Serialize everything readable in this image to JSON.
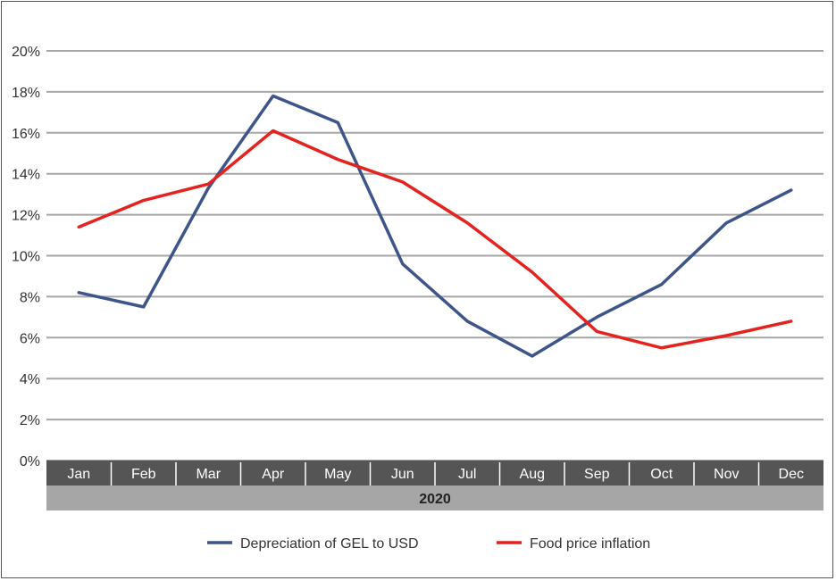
{
  "chart_data": {
    "type": "line",
    "categories": [
      "Jan",
      "Feb",
      "Mar",
      "Apr",
      "May",
      "Jun",
      "Jul",
      "Aug",
      "Sep",
      "Oct",
      "Nov",
      "Dec"
    ],
    "group_label": "2020",
    "yticks": [
      "0%",
      "2%",
      "4%",
      "6%",
      "8%",
      "10%",
      "12%",
      "14%",
      "16%",
      "18%",
      "20%"
    ],
    "ylim": [
      0,
      20
    ],
    "grid": true,
    "legend_position": "bottom",
    "series": [
      {
        "name": "Depreciation of GEL to USD",
        "color": "#3d5588",
        "values": [
          8.2,
          7.5,
          13.3,
          17.8,
          16.5,
          9.6,
          6.8,
          5.1,
          7.0,
          8.6,
          11.6,
          13.2
        ]
      },
      {
        "name": "Food price inflation",
        "color": "#e42320",
        "values": [
          11.4,
          12.7,
          13.5,
          16.1,
          14.7,
          13.6,
          11.6,
          9.2,
          6.3,
          5.5,
          6.1,
          6.8
        ]
      }
    ]
  }
}
